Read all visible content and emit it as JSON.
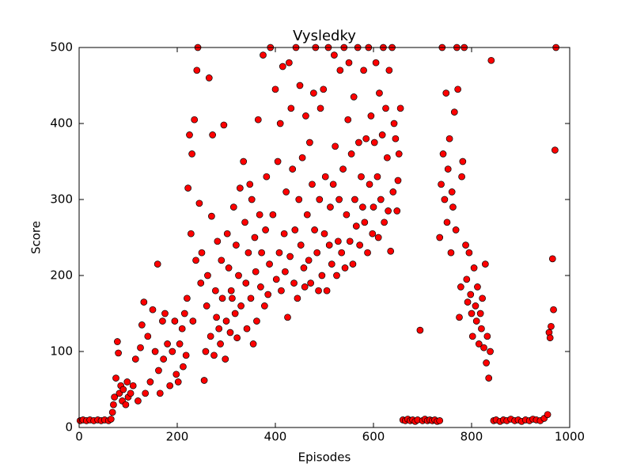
{
  "chart_data": {
    "type": "scatter",
    "title": "Vysledky",
    "x_label": "Episodes",
    "y_label": "Score",
    "color": "#ff0000",
    "xlim": [
      0,
      1000
    ],
    "ylim": [
      0,
      500
    ],
    "xticks": [
      0,
      200,
      400,
      600,
      800,
      1000
    ],
    "yticks": [
      0,
      100,
      200,
      300,
      400,
      500
    ],
    "x": [
      2,
      8,
      15,
      22,
      30,
      38,
      45,
      52,
      60,
      65,
      68,
      70,
      72,
      75,
      78,
      80,
      82,
      85,
      88,
      90,
      95,
      98,
      100,
      105,
      110,
      115,
      120,
      125,
      128,
      132,
      135,
      140,
      145,
      150,
      155,
      160,
      162,
      165,
      170,
      172,
      175,
      180,
      185,
      190,
      195,
      198,
      202,
      205,
      210,
      212,
      215,
      218,
      220,
      222,
      225,
      228,
      230,
      232,
      235,
      238,
      240,
      242,
      245,
      248,
      250,
      255,
      258,
      260,
      262,
      265,
      268,
      270,
      272,
      275,
      278,
      280,
      282,
      285,
      288,
      290,
      292,
      295,
      298,
      300,
      302,
      305,
      308,
      310,
      312,
      315,
      318,
      320,
      322,
      325,
      328,
      330,
      335,
      338,
      340,
      342,
      345,
      348,
      350,
      352,
      355,
      358,
      360,
      362,
      365,
      368,
      370,
      372,
      375,
      378,
      380,
      382,
      385,
      388,
      390,
      395,
      400,
      402,
      405,
      408,
      410,
      412,
      415,
      418,
      420,
      422,
      425,
      428,
      430,
      432,
      435,
      438,
      440,
      442,
      445,
      448,
      450,
      452,
      455,
      458,
      460,
      462,
      465,
      468,
      470,
      472,
      475,
      478,
      480,
      482,
      485,
      488,
      490,
      492,
      495,
      498,
      500,
      502,
      505,
      508,
      510,
      512,
      515,
      518,
      520,
      522,
      525,
      528,
      530,
      532,
      535,
      538,
      540,
      542,
      545,
      548,
      550,
      552,
      555,
      558,
      560,
      562,
      565,
      568,
      570,
      572,
      575,
      578,
      580,
      582,
      585,
      588,
      590,
      592,
      595,
      598,
      600,
      602,
      605,
      608,
      610,
      612,
      615,
      618,
      620,
      622,
      625,
      628,
      630,
      632,
      635,
      638,
      640,
      642,
      645,
      648,
      650,
      652,
      655,
      660,
      665,
      670,
      675,
      680,
      685,
      690,
      695,
      700,
      705,
      710,
      715,
      720,
      725,
      730,
      735,
      735,
      738,
      740,
      742,
      745,
      748,
      750,
      752,
      755,
      758,
      760,
      762,
      765,
      768,
      770,
      772,
      775,
      778,
      780,
      782,
      785,
      788,
      790,
      792,
      795,
      798,
      800,
      802,
      805,
      808,
      810,
      812,
      815,
      818,
      820,
      822,
      825,
      828,
      830,
      832,
      835,
      838,
      840,
      845,
      850,
      858,
      865,
      872,
      880,
      888,
      895,
      902,
      910,
      918,
      925,
      932,
      940,
      948,
      955,
      958,
      960,
      962,
      965,
      967,
      970,
      972
    ],
    "values": [
      9,
      10,
      9,
      10,
      9,
      10,
      9,
      10,
      9,
      11,
      20,
      30,
      40,
      65,
      113,
      98,
      45,
      55,
      35,
      50,
      30,
      60,
      40,
      45,
      55,
      90,
      35,
      105,
      135,
      165,
      45,
      120,
      60,
      155,
      100,
      215,
      75,
      45,
      140,
      90,
      150,
      110,
      55,
      100,
      140,
      70,
      60,
      110,
      130,
      80,
      150,
      95,
      170,
      315,
      385,
      255,
      360,
      140,
      405,
      220,
      470,
      500,
      295,
      190,
      230,
      62,
      100,
      160,
      200,
      460,
      120,
      278,
      385,
      95,
      180,
      145,
      245,
      130,
      110,
      220,
      170,
      398,
      90,
      140,
      255,
      210,
      125,
      180,
      170,
      290,
      150,
      240,
      118,
      200,
      315,
      160,
      350,
      270,
      190,
      130,
      230,
      320,
      170,
      300,
      110,
      250,
      205,
      140,
      405,
      280,
      185,
      230,
      490,
      160,
      260,
      330,
      175,
      215,
      500,
      280,
      445,
      195,
      350,
      230,
      400,
      180,
      475,
      255,
      205,
      310,
      145,
      480,
      225,
      420,
      340,
      190,
      260,
      500,
      170,
      300,
      450,
      240,
      355,
      210,
      185,
      410,
      280,
      220,
      375,
      190,
      320,
      440,
      260,
      500,
      230,
      180,
      300,
      420,
      200,
      445,
      255,
      330,
      180,
      500,
      240,
      290,
      215,
      320,
      490,
      370,
      200,
      245,
      300,
      470,
      230,
      340,
      500,
      210,
      280,
      405,
      480,
      245,
      360,
      215,
      435,
      300,
      265,
      500,
      375,
      240,
      330,
      290,
      470,
      270,
      380,
      230,
      500,
      320,
      410,
      255,
      290,
      375,
      480,
      330,
      250,
      440,
      300,
      385,
      500,
      270,
      420,
      355,
      285,
      470,
      232,
      500,
      310,
      400,
      380,
      285,
      325,
      360,
      420,
      10,
      9,
      11,
      9,
      10,
      8,
      10,
      128,
      9,
      11,
      9,
      10,
      9,
      10,
      8,
      9,
      250,
      320,
      500,
      360,
      300,
      440,
      270,
      340,
      380,
      230,
      310,
      290,
      415,
      260,
      500,
      445,
      145,
      185,
      330,
      350,
      500,
      240,
      195,
      165,
      230,
      175,
      150,
      120,
      210,
      160,
      140,
      185,
      110,
      150,
      130,
      170,
      105,
      215,
      85,
      120,
      65,
      100,
      483,
      9,
      10,
      8,
      10,
      9,
      11,
      9,
      10,
      8,
      10,
      9,
      11,
      10,
      9,
      12,
      17,
      125,
      118,
      133,
      222,
      155,
      365,
      500
    ]
  }
}
